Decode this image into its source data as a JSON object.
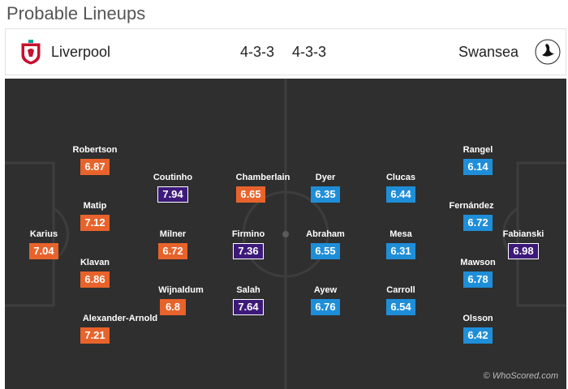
{
  "header": {
    "title": "Probable Lineups"
  },
  "home": {
    "name": "Liverpool",
    "formation": "4-3-3",
    "badge_icon": "liverpool-crest-icon",
    "color": "#e8632b",
    "players": [
      {
        "name": "Karius",
        "rating": "7.04"
      },
      {
        "name": "Robertson",
        "rating": "6.87"
      },
      {
        "name": "Matip",
        "rating": "7.12"
      },
      {
        "name": "Klavan",
        "rating": "6.86"
      },
      {
        "name": "Alexander-Arnold",
        "rating": "7.21"
      },
      {
        "name": "Coutinho",
        "rating": "7.94",
        "top": true
      },
      {
        "name": "Milner",
        "rating": "6.72"
      },
      {
        "name": "Wijnaldum",
        "rating": "6.8"
      },
      {
        "name": "Chamberlain",
        "rating": "6.65"
      },
      {
        "name": "Firmino",
        "rating": "7.36",
        "top": true
      },
      {
        "name": "Salah",
        "rating": "7.64",
        "top": true
      }
    ]
  },
  "away": {
    "name": "Swansea",
    "formation": "4-3-3",
    "badge_icon": "swansea-swan-icon",
    "color": "#1f8ed8",
    "players": [
      {
        "name": "Dyer",
        "rating": "6.35"
      },
      {
        "name": "Abraham",
        "rating": "6.55"
      },
      {
        "name": "Ayew",
        "rating": "6.76"
      },
      {
        "name": "Clucas",
        "rating": "6.44"
      },
      {
        "name": "Mesa",
        "rating": "6.31"
      },
      {
        "name": "Carroll",
        "rating": "6.54"
      },
      {
        "name": "Rangel",
        "rating": "6.14"
      },
      {
        "name": "Fernández",
        "rating": "6.72"
      },
      {
        "name": "Mawson",
        "rating": "6.78"
      },
      {
        "name": "Olsson",
        "rating": "6.42"
      },
      {
        "name": "Fabianski",
        "rating": "6.98",
        "top": true
      }
    ]
  },
  "top_rating_color": "#3d1a7a",
  "watermark": "© WhoScored.com"
}
